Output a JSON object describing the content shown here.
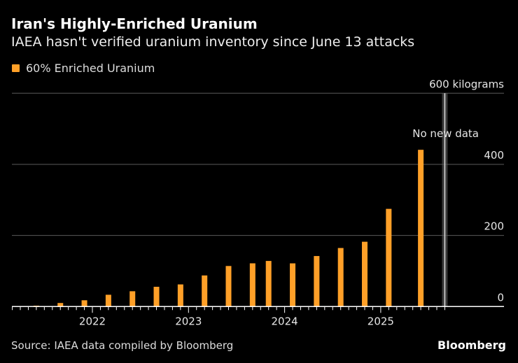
{
  "header": {
    "title": "Iran's Highly-Enriched Uranium",
    "subtitle": "IAEA hasn't verified uranium inventory since June 13 attacks"
  },
  "footer": {
    "source": "Source: IAEA data compiled by Bloomberg",
    "brand": "Bloomberg"
  },
  "colors": {
    "bar": "#ffa028",
    "background": "#000000",
    "gridline": "#5a5a5a",
    "no_data_band": "#3a3a3a"
  },
  "chart_data": {
    "type": "bar",
    "title": "Iran's Highly-Enriched Uranium",
    "subtitle": "IAEA hasn't verified uranium inventory since June 13 attacks",
    "legend": {
      "placement": "top-left",
      "entries": [
        "60% Enriched Uranium"
      ]
    },
    "series": [
      {
        "name": "60% Enriched Uranium",
        "x": [
          "2021-04",
          "2021-06",
          "2021-09",
          "2021-12",
          "2022-03",
          "2022-06",
          "2022-09",
          "2022-12",
          "2023-03",
          "2023-06",
          "2023-09",
          "2023-11",
          "2024-02",
          "2024-05",
          "2024-08",
          "2024-11",
          "2025-02",
          "2025-06"
        ],
        "values": [
          1,
          2.4,
          10,
          17.7,
          33.2,
          43.1,
          55.6,
          62.3,
          87.5,
          114.1,
          121.6,
          128.3,
          121.5,
          142.1,
          164.7,
          182.3,
          274.8,
          440.9
        ]
      }
    ],
    "xlim": [
      "2021-03",
      "2025-09"
    ],
    "x_tick_labels": [
      "2022",
      "2023",
      "2024",
      "2025"
    ],
    "ylim": [
      0,
      600
    ],
    "y_ticks": [
      0,
      200,
      400,
      600
    ],
    "y_tick_labels": [
      "0",
      "200",
      "400",
      "600 kilograms"
    ],
    "y_axis_position": "right",
    "grid": true,
    "annotations": [
      {
        "text": "No new data",
        "x": "2025-09"
      }
    ]
  }
}
